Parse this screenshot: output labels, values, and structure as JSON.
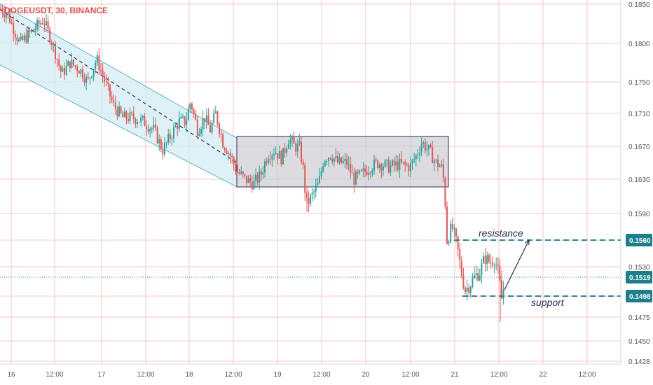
{
  "symbol_title": "DOGEUSDT, 30, BINANCE",
  "colors": {
    "up": "#26a69a",
    "down": "#ef5350",
    "grid": "#f4c7c7",
    "channel": "#5bb4c8",
    "channel_fill": "#d3ecf3",
    "range_fill": "#cfcfd6",
    "range_border": "#2b2b55",
    "level_line": "#2a8a96",
    "price_tag": "#1d7f8c",
    "annotation": "#2b2b55"
  },
  "chart_data": {
    "type": "candlestick",
    "xlabels": [
      "16",
      "12:00",
      "17",
      "12:00",
      "18",
      "12:00",
      "19",
      "12:00",
      "20",
      "12:00",
      "21",
      "12:00",
      "22",
      "12:00"
    ],
    "yticks": [
      "0.1850",
      "0.1800",
      "0.1750",
      "0.1710",
      "0.1670",
      "0.1630",
      "0.1590",
      "0.1560",
      "0.1530",
      "0.1519",
      "0.1498",
      "0.1475",
      "0.1450",
      "0.1428"
    ],
    "ylim": [
      0.1428,
      0.185
    ],
    "grid": true,
    "price_path": [
      [
        0,
        0.1845
      ],
      [
        12,
        0.1835
      ],
      [
        28,
        0.18
      ],
      [
        45,
        0.1815
      ],
      [
        62,
        0.183
      ],
      [
        75,
        0.18
      ],
      [
        88,
        0.176
      ],
      [
        100,
        0.1775
      ],
      [
        115,
        0.1765
      ],
      [
        125,
        0.175
      ],
      [
        138,
        0.178
      ],
      [
        150,
        0.175
      ],
      [
        162,
        0.172
      ],
      [
        175,
        0.1705
      ],
      [
        190,
        0.1705
      ],
      [
        205,
        0.17
      ],
      [
        220,
        0.169
      ],
      [
        232,
        0.1665
      ],
      [
        245,
        0.1685
      ],
      [
        255,
        0.17
      ],
      [
        265,
        0.17
      ],
      [
        272,
        0.1725
      ],
      [
        282,
        0.169
      ],
      [
        292,
        0.1705
      ],
      [
        300,
        0.169
      ],
      [
        308,
        0.171
      ],
      [
        318,
        0.1675
      ],
      [
        328,
        0.166
      ],
      [
        338,
        0.164
      ],
      [
        350,
        0.163
      ],
      [
        362,
        0.1625
      ],
      [
        372,
        0.1635
      ],
      [
        382,
        0.166
      ],
      [
        392,
        0.1665
      ],
      [
        402,
        0.1655
      ],
      [
        412,
        0.168
      ],
      [
        420,
        0.167
      ],
      [
        428,
        0.1668
      ],
      [
        433,
        0.164
      ],
      [
        437,
        0.16
      ],
      [
        445,
        0.161
      ],
      [
        455,
        0.1625
      ],
      [
        462,
        0.1655
      ],
      [
        472,
        0.166
      ],
      [
        482,
        0.165
      ],
      [
        495,
        0.165
      ],
      [
        505,
        0.163
      ],
      [
        515,
        0.1635
      ],
      [
        528,
        0.1645
      ],
      [
        540,
        0.165
      ],
      [
        555,
        0.1645
      ],
      [
        570,
        0.1648
      ],
      [
        585,
        0.1645
      ],
      [
        595,
        0.166
      ],
      [
        602,
        0.1675
      ],
      [
        612,
        0.1665
      ],
      [
        622,
        0.165
      ],
      [
        630,
        0.1645
      ],
      [
        634,
        0.1625
      ],
      [
        638,
        0.156
      ],
      [
        645,
        0.1575
      ],
      [
        652,
        0.1555
      ],
      [
        658,
        0.1525
      ],
      [
        664,
        0.1505
      ],
      [
        670,
        0.151
      ],
      [
        678,
        0.152
      ],
      [
        685,
        0.1525
      ],
      [
        692,
        0.154
      ],
      [
        700,
        0.1535
      ],
      [
        706,
        0.154
      ],
      [
        712,
        0.152
      ],
      [
        716,
        0.1495
      ],
      [
        720,
        0.1512
      ]
    ],
    "channel": {
      "upper": [
        [
          0,
          0.1815
        ],
        [
          338,
          0.168
        ]
      ],
      "lower": [
        [
          0,
          0.1772
        ],
        [
          338,
          0.1621
        ]
      ],
      "mid": [
        [
          0,
          0.1843
        ],
        [
          338,
          0.165
        ]
      ]
    },
    "range_box": {
      "x_from": 338,
      "x_to": 640,
      "y_top": 0.1682,
      "y_bottom": 0.1621
    },
    "levels": [
      {
        "name": "resistance",
        "price": 0.156,
        "label": "0.1560",
        "x_from": 648
      },
      {
        "name": "support",
        "price": 0.1498,
        "label": "0.1498",
        "x_from": 660
      }
    ],
    "current_price": {
      "price": 0.1519,
      "label": "0.1519"
    },
    "annotations": {
      "resistance": "resistance",
      "support": "support"
    },
    "projection": {
      "from": [
        720,
        0.1505
      ],
      "to": [
        755,
        0.156
      ]
    }
  }
}
